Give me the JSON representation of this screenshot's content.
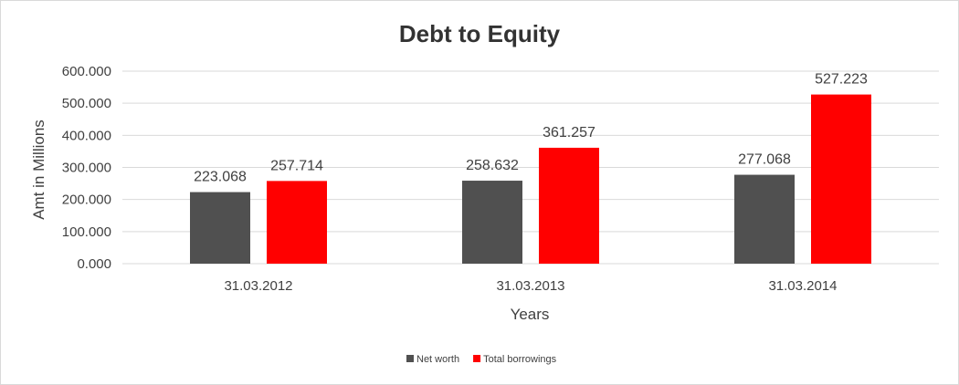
{
  "chart_data": {
    "type": "bar",
    "title": "Debt to Equity",
    "xlabel": "Years",
    "ylabel": "Amt in Millions",
    "categories": [
      "31.03.2012",
      "31.03.2013",
      "31.03.2014"
    ],
    "series": [
      {
        "name": "Net worth",
        "color": "#505050",
        "values": [
          223.068,
          258.632,
          277.068
        ],
        "labels": [
          "223.068",
          "258.632",
          "277.068"
        ]
      },
      {
        "name": "Total borrowings",
        "color": "#ff0000",
        "values": [
          257.714,
          361.257,
          527.223
        ],
        "labels": [
          "257.714",
          "361.257",
          "527.223"
        ]
      }
    ],
    "ylim": [
      0,
      600
    ],
    "yticks": [
      "0.000",
      "100.000",
      "200.000",
      "300.000",
      "400.000",
      "500.000",
      "600.000"
    ],
    "grid": true,
    "legend_position": "bottom"
  }
}
